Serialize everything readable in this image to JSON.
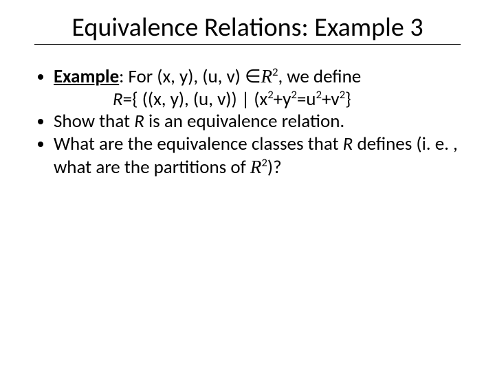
{
  "slide": {
    "title": "Equivalence Relations: Example 3",
    "bullets": {
      "b1_lead": "Example",
      "b1_rest": ": For (x, y), (u, v) ∈",
      "b1_r": "R",
      "b1_sup": "2",
      "b1_tail": ", we define",
      "b1_line2_r": "R",
      "b1_line2_rest": "={ ((x, y), (u, v)) | (x",
      "b1_line2_s1": "2",
      "b1_line2_mid1": "+y",
      "b1_line2_s2": "2",
      "b1_line2_mid2": "=u",
      "b1_line2_s3": "2",
      "b1_line2_mid3": "+v",
      "b1_line2_s4": "2",
      "b1_line2_end": "}",
      "b2a": "Show that ",
      "b2r": "R",
      "b2b": " is an equivalence relation.",
      "b3a": "What are the equivalence classes that ",
      "b3r": "R",
      "b3b": " defines (i. e. , what are the partitions of ",
      "b3R2": "R",
      "b3sup": "2",
      "b3c": ")?"
    }
  },
  "style": {
    "title_fontsize": 38,
    "body_fontsize": 27,
    "text_color": "#000000",
    "background_color": "#ffffff"
  }
}
